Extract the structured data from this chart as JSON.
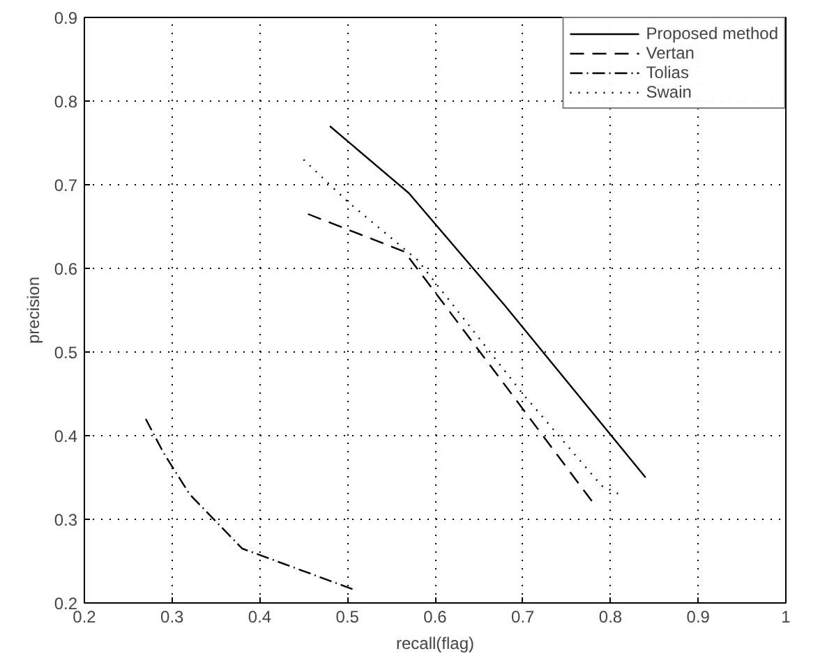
{
  "chart_data": {
    "type": "line",
    "xlabel": "recall(flag)",
    "ylabel": "precision",
    "xlim": [
      0.2,
      1
    ],
    "ylim": [
      0.2,
      0.9
    ],
    "xticks": [
      0.2,
      0.3,
      0.4,
      0.5,
      0.6,
      0.7,
      0.8,
      0.9,
      1
    ],
    "yticks": [
      0.2,
      0.3,
      0.4,
      0.5,
      0.6,
      0.7,
      0.8,
      0.9
    ],
    "grid": true,
    "legend": "top right",
    "marker": "none",
    "series": [
      {
        "name": "Proposed method",
        "color": "#000000",
        "line_style": "solid",
        "x": [
          0.48,
          0.57,
          0.68,
          0.84
        ],
        "values": [
          0.77,
          0.69,
          0.555,
          0.35
        ]
      },
      {
        "name": "Vertan",
        "color": "#000000",
        "line_style": "dashed",
        "x": [
          0.455,
          0.565,
          0.68,
          0.78
        ],
        "values": [
          0.665,
          0.62,
          0.46,
          0.32
        ]
      },
      {
        "name": "Tolias",
        "color": "#000000",
        "line_style": "dashdot",
        "x": [
          0.27,
          0.29,
          0.32,
          0.38,
          0.51
        ],
        "values": [
          0.42,
          0.38,
          0.33,
          0.265,
          0.215
        ]
      },
      {
        "name": "Swain",
        "color": "#000000",
        "line_style": "dotted",
        "x": [
          0.45,
          0.5,
          0.58,
          0.7,
          0.79,
          0.81
        ],
        "values": [
          0.73,
          0.68,
          0.61,
          0.45,
          0.34,
          0.33
        ]
      }
    ]
  }
}
